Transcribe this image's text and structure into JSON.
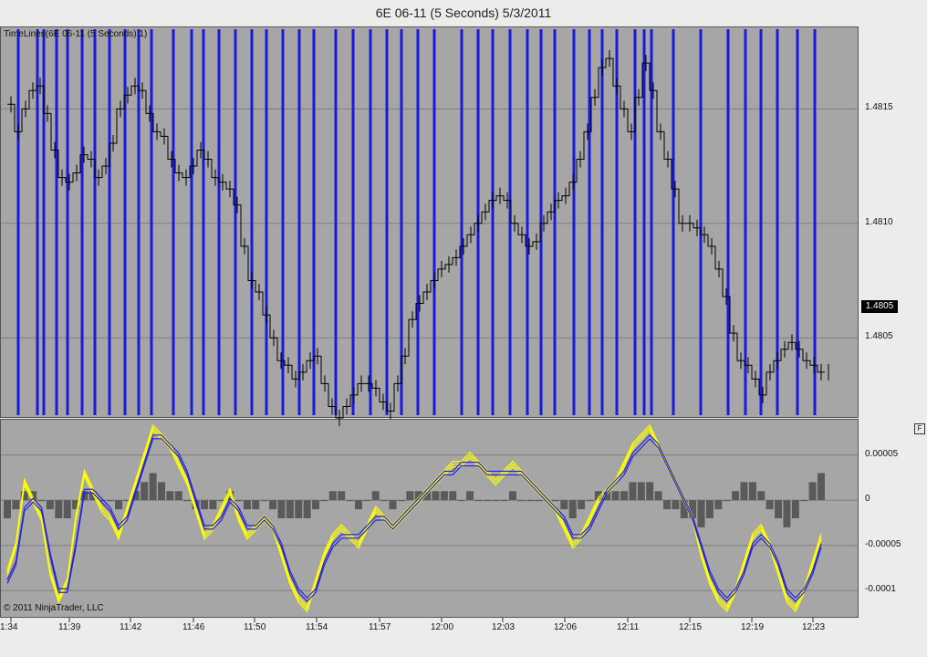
{
  "window": {
    "title": "6E 06-11 (5 Seconds)  5/3/2011"
  },
  "indicator_label": "TimeLines(6E 06-11 (5 Seconds),1)",
  "copyright": "© 2011 NinjaTrader, LLC",
  "price_tag": "1.4805",
  "panel_button": "F",
  "colors": {
    "panel_bg": "#a6a6a6",
    "timeline": "#1a1adb",
    "fast_ma": "#ffff00",
    "slow_ma": "#2222dd",
    "histogram": "#5a5a5a",
    "price": "#000000"
  },
  "chart_data": [
    {
      "type": "line",
      "name": "price",
      "y_ticks": [
        "1.4815",
        "1.4810",
        "1.4805"
      ],
      "ylim": [
        1.48015,
        1.48186
      ],
      "x_tick_labels": [
        "1:34",
        "11:39",
        "11:42",
        "11:46",
        "11:50",
        "11:54",
        "11:57",
        "12:00",
        "12:03",
        "12:06",
        "12:11",
        "12:15",
        "12:19",
        "12:23"
      ],
      "x": [
        0,
        8,
        16,
        24,
        32,
        40,
        48,
        56,
        64,
        72,
        80,
        88,
        96,
        104,
        112,
        120,
        128,
        136,
        144,
        152,
        160,
        168,
        176,
        184,
        192,
        200,
        208,
        216,
        224,
        232,
        240,
        248,
        256,
        264,
        272,
        280,
        288,
        296,
        304,
        312,
        320,
        328,
        336,
        344,
        352,
        360,
        368,
        376,
        384,
        392,
        400,
        408,
        416,
        424,
        432,
        440,
        448,
        456,
        464,
        472,
        480,
        488,
        496,
        504,
        512,
        520,
        528,
        536,
        544,
        552,
        560,
        568,
        576,
        584,
        592,
        600,
        608,
        616,
        624,
        632,
        640,
        648,
        656,
        664,
        672,
        680,
        688,
        696,
        704,
        712,
        720,
        728,
        736,
        744,
        752,
        760,
        768,
        776,
        784,
        792,
        800,
        808,
        816,
        824,
        832,
        840,
        848,
        856,
        864,
        872,
        880,
        888,
        896
      ],
      "values": [
        1.48152,
        1.4814,
        1.4815,
        1.48158,
        1.4816,
        1.48148,
        1.48132,
        1.4812,
        1.48118,
        1.48122,
        1.4813,
        1.48128,
        1.4812,
        1.48125,
        1.48135,
        1.4815,
        1.48156,
        1.4816,
        1.48158,
        1.48148,
        1.4814,
        1.48138,
        1.48128,
        1.48122,
        1.4812,
        1.48125,
        1.48132,
        1.48128,
        1.4812,
        1.48118,
        1.48115,
        1.48108,
        1.4809,
        1.48075,
        1.4807,
        1.4806,
        1.4805,
        1.4804,
        1.48038,
        1.48032,
        1.48035,
        1.4804,
        1.48042,
        1.4803,
        1.4802,
        1.48015,
        1.4802,
        1.48025,
        1.4803,
        1.4803,
        1.48028,
        1.48022,
        1.48018,
        1.4803,
        1.48042,
        1.48058,
        1.48065,
        1.4807,
        1.48075,
        1.4808,
        1.48082,
        1.48085,
        1.4809,
        1.48095,
        1.481,
        1.48105,
        1.4811,
        1.48112,
        1.4811,
        1.481,
        1.48095,
        1.4809,
        1.48092,
        1.481,
        1.48105,
        1.4811,
        1.48112,
        1.48118,
        1.48128,
        1.4814,
        1.48155,
        1.48168,
        1.48172,
        1.4816,
        1.4815,
        1.4814,
        1.48155,
        1.4817,
        1.48158,
        1.4814,
        1.48128,
        1.48115,
        1.481,
        1.481,
        1.48098,
        1.48095,
        1.4809,
        1.4808,
        1.48068,
        1.48052,
        1.4804,
        1.48038,
        1.48032,
        1.48025,
        1.48035,
        1.4804,
        1.48045,
        1.48048,
        1.48045,
        1.4804,
        1.48038,
        1.48035,
        1.48035
      ]
    },
    {
      "type": "line",
      "name": "oscillator",
      "y_ticks": [
        "0.00005",
        "0",
        "-0.00005",
        "-0.0001"
      ],
      "ylim": [
        -0.00013,
        9e-05
      ],
      "series": [
        {
          "values": [
            -8e-05,
            -5e-05,
            2e-05,
            0.0,
            -2e-05,
            -8e-05,
            -0.00011,
            -9e-05,
            -2e-05,
            3e-05,
            1e-05,
            -1e-05,
            -2e-05,
            -4e-05,
            -1e-05,
            2e-05,
            5e-05,
            8e-05,
            7e-05,
            6e-05,
            4e-05,
            2e-05,
            -1e-05,
            -4e-05,
            -3e-05,
            -1e-05,
            1e-05,
            -2e-05,
            -4e-05,
            -3e-05,
            -2e-05,
            -3e-05,
            -6e-05,
            -9e-05,
            -0.00011,
            -0.00012,
            -9e-05,
            -6e-05,
            -4e-05,
            -3e-05,
            -4e-05,
            -5e-05,
            -3e-05,
            -1e-05,
            -2e-05,
            -3e-05,
            -2e-05,
            -1e-05,
            0.0,
            1e-05,
            2e-05,
            3e-05,
            4e-05,
            4e-05,
            5e-05,
            4e-05,
            3e-05,
            2e-05,
            3e-05,
            4e-05,
            3e-05,
            2e-05,
            1e-05,
            0.0,
            -1e-05,
            -3e-05,
            -5e-05,
            -4e-05,
            -2e-05,
            0.0,
            1e-05,
            2e-05,
            4e-05,
            6e-05,
            7e-05,
            8e-05,
            6e-05,
            4e-05,
            2e-05,
            0.0,
            -2e-05,
            -6e-05,
            -9e-05,
            -0.00011,
            -0.00012,
            -0.0001,
            -7e-05,
            -4e-05,
            -3e-05,
            -5e-05,
            -8e-05,
            -0.00011,
            -0.00012,
            -0.0001,
            -7e-05,
            -4e-05
          ]
        },
        {
          "values": [
            -9e-05,
            -7e-05,
            -1e-05,
            0.0,
            -1e-05,
            -6e-05,
            -0.0001,
            -0.0001,
            -5e-05,
            1e-05,
            1e-05,
            0.0,
            -1e-05,
            -3e-05,
            -2e-05,
            1e-05,
            4e-05,
            7e-05,
            7e-05,
            6e-05,
            5e-05,
            3e-05,
            0.0,
            -3e-05,
            -3e-05,
            -2e-05,
            0.0,
            -1e-05,
            -3e-05,
            -3e-05,
            -2e-05,
            -3e-05,
            -5e-05,
            -8e-05,
            -0.0001,
            -0.00011,
            -0.0001,
            -7e-05,
            -5e-05,
            -4e-05,
            -4e-05,
            -4e-05,
            -3e-05,
            -2e-05,
            -2e-05,
            -3e-05,
            -2e-05,
            -1e-05,
            0.0,
            1e-05,
            2e-05,
            3e-05,
            3e-05,
            4e-05,
            4e-05,
            4e-05,
            3e-05,
            3e-05,
            3e-05,
            3e-05,
            3e-05,
            2e-05,
            1e-05,
            0.0,
            -1e-05,
            -2e-05,
            -4e-05,
            -4e-05,
            -3e-05,
            -1e-05,
            1e-05,
            2e-05,
            3e-05,
            5e-05,
            6e-05,
            7e-05,
            6e-05,
            4e-05,
            2e-05,
            0.0,
            -2e-05,
            -5e-05,
            -8e-05,
            -0.0001,
            -0.00011,
            -0.0001,
            -8e-05,
            -5e-05,
            -4e-05,
            -5e-05,
            -7e-05,
            -0.0001,
            -0.00011,
            -0.0001,
            -8e-05,
            -5e-05
          ]
        }
      ],
      "histogram": [
        -2e-05,
        -1e-05,
        1e-05,
        1e-05,
        0.0,
        -1e-05,
        -2e-05,
        -2e-05,
        -1e-05,
        1e-05,
        1e-05,
        0.0,
        0.0,
        -1e-05,
        0.0,
        1e-05,
        2e-05,
        3e-05,
        2e-05,
        1e-05,
        1e-05,
        0.0,
        -1e-05,
        -1e-05,
        -1e-05,
        0.0,
        1e-05,
        0.0,
        -1e-05,
        -1e-05,
        0.0,
        -1e-05,
        -2e-05,
        -2e-05,
        -2e-05,
        -2e-05,
        -1e-05,
        0.0,
        1e-05,
        1e-05,
        0.0,
        -1e-05,
        0.0,
        1e-05,
        0.0,
        -1e-05,
        0.0,
        1e-05,
        1e-05,
        1e-05,
        1e-05,
        1e-05,
        1e-05,
        0.0,
        1e-05,
        0.0,
        0.0,
        0.0,
        0.0,
        1e-05,
        0.0,
        0.0,
        0.0,
        0.0,
        0.0,
        -1e-05,
        -2e-05,
        -1e-05,
        0.0,
        1e-05,
        1e-05,
        1e-05,
        1e-05,
        2e-05,
        2e-05,
        2e-05,
        1e-05,
        -1e-05,
        -1e-05,
        -2e-05,
        -2e-05,
        -3e-05,
        -2e-05,
        -1e-05,
        0.0,
        1e-05,
        2e-05,
        2e-05,
        1e-05,
        -1e-05,
        -2e-05,
        -3e-05,
        -2e-05,
        0.0,
        2e-05,
        3e-05
      ]
    }
  ]
}
